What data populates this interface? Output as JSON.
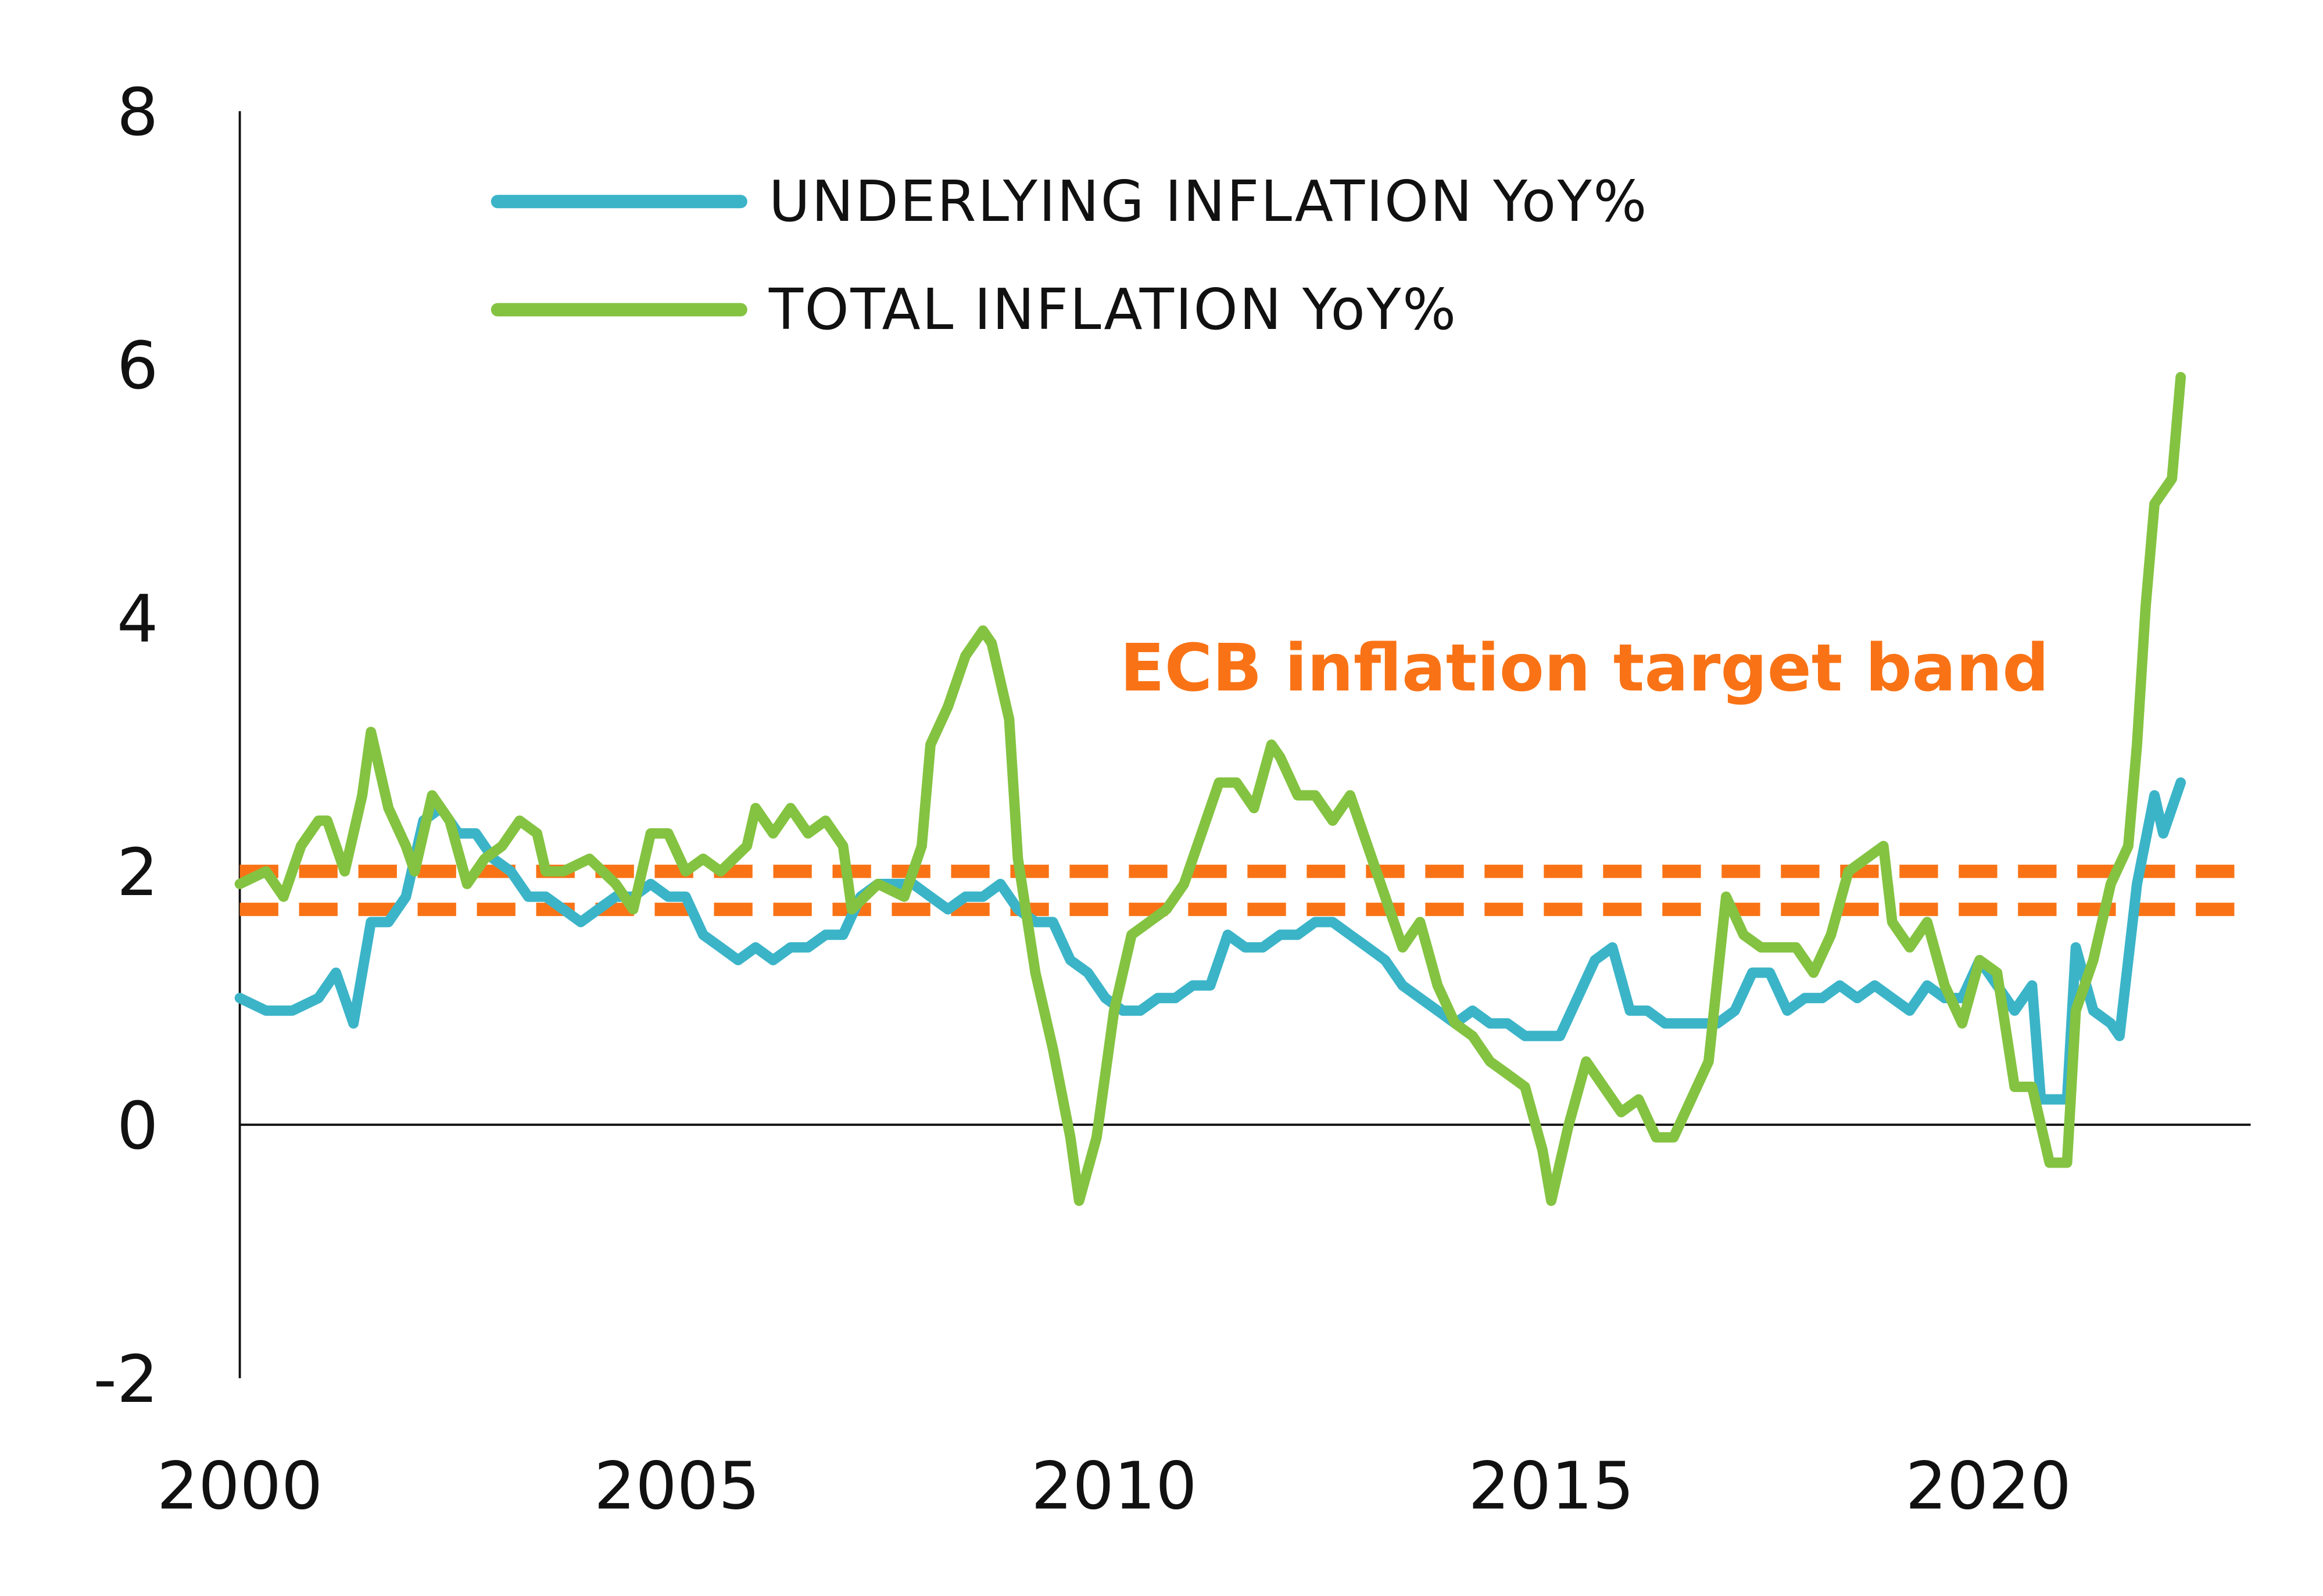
{
  "chart_data": {
    "type": "line",
    "title": "",
    "xlabel": "",
    "ylabel": "",
    "xlim": [
      2000,
      2023
    ],
    "ylim": [
      -2,
      8
    ],
    "x_ticks": [
      2000,
      2005,
      2010,
      2015,
      2020
    ],
    "x_tick_labels": [
      "2000",
      "2005",
      "2010",
      "2015",
      "2020"
    ],
    "y_ticks": [
      -2,
      0,
      2,
      4,
      6,
      8
    ],
    "y_tick_labels": [
      "-2",
      "0",
      "2",
      "4",
      "6",
      "8"
    ],
    "grid": false,
    "legend_position": "top-center",
    "annotation": "ECB inflation target band",
    "target_band": {
      "upper": 2.0,
      "lower": 1.7,
      "color": "#f97316"
    },
    "series": [
      {
        "name": "UNDERLYING INFLATION YoY%",
        "color": "#3bb4c8",
        "x": [
          2000.0,
          2000.3,
          2000.6,
          2000.9,
          2001.1,
          2001.3,
          2001.5,
          2001.7,
          2001.9,
          2002.1,
          2002.3,
          2002.5,
          2002.7,
          2002.9,
          2003.1,
          2003.3,
          2003.5,
          2003.7,
          2003.9,
          2004.1,
          2004.3,
          2004.5,
          2004.7,
          2004.9,
          2005.1,
          2005.3,
          2005.5,
          2005.7,
          2005.9,
          2006.1,
          2006.3,
          2006.5,
          2006.7,
          2006.9,
          2007.1,
          2007.3,
          2007.5,
          2007.7,
          2007.9,
          2008.1,
          2008.3,
          2008.5,
          2008.7,
          2008.9,
          2009.1,
          2009.3,
          2009.5,
          2009.7,
          2009.9,
          2010.1,
          2010.3,
          2010.5,
          2010.7,
          2010.9,
          2011.1,
          2011.3,
          2011.5,
          2011.7,
          2011.9,
          2012.1,
          2012.3,
          2012.5,
          2012.7,
          2012.9,
          2013.1,
          2013.3,
          2013.5,
          2013.7,
          2013.9,
          2014.1,
          2014.3,
          2014.5,
          2014.7,
          2014.9,
          2015.1,
          2015.3,
          2015.5,
          2015.7,
          2015.9,
          2016.1,
          2016.3,
          2016.5,
          2016.7,
          2016.9,
          2017.1,
          2017.3,
          2017.5,
          2017.7,
          2017.9,
          2018.1,
          2018.3,
          2018.5,
          2018.7,
          2018.9,
          2019.1,
          2019.3,
          2019.5,
          2019.7,
          2019.9,
          2020.1,
          2020.3,
          2020.5,
          2020.6,
          2020.9,
          2021.0,
          2021.2,
          2021.4,
          2021.5,
          2021.7,
          2021.9,
          2022.0,
          2022.2
        ],
        "values": [
          1.0,
          0.9,
          0.9,
          1.0,
          1.2,
          0.8,
          1.6,
          1.6,
          1.8,
          2.4,
          2.5,
          2.3,
          2.3,
          2.1,
          2.0,
          1.8,
          1.8,
          1.7,
          1.6,
          1.7,
          1.8,
          1.8,
          1.9,
          1.8,
          1.8,
          1.5,
          1.4,
          1.3,
          1.4,
          1.3,
          1.4,
          1.4,
          1.5,
          1.5,
          1.8,
          1.9,
          1.9,
          1.9,
          1.8,
          1.7,
          1.8,
          1.8,
          1.9,
          1.7,
          1.6,
          1.6,
          1.3,
          1.2,
          1.0,
          0.9,
          0.9,
          1.0,
          1.0,
          1.1,
          1.1,
          1.5,
          1.4,
          1.4,
          1.5,
          1.5,
          1.6,
          1.6,
          1.5,
          1.4,
          1.3,
          1.1,
          1.0,
          0.9,
          0.8,
          0.9,
          0.8,
          0.8,
          0.7,
          0.7,
          0.7,
          1.0,
          1.3,
          1.4,
          0.9,
          0.9,
          0.8,
          0.8,
          0.8,
          0.8,
          0.9,
          1.2,
          1.2,
          0.9,
          1.0,
          1.0,
          1.1,
          1.0,
          1.1,
          1.0,
          0.9,
          1.1,
          1.0,
          1.0,
          1.3,
          1.1,
          0.9,
          1.1,
          0.2,
          0.2,
          1.4,
          0.9,
          0.8,
          0.7,
          1.9,
          2.6,
          2.3,
          2.7
        ]
      },
      {
        "name": "TOTAL INFLATION YoY%",
        "color": "#84c341",
        "x": [
          2000.0,
          2000.3,
          2000.5,
          2000.7,
          2000.9,
          2001.0,
          2001.2,
          2001.4,
          2001.5,
          2001.7,
          2001.9,
          2002.0,
          2002.2,
          2002.4,
          2002.6,
          2002.8,
          2003.0,
          2003.2,
          2003.4,
          2003.5,
          2003.7,
          2004.0,
          2004.3,
          2004.5,
          2004.7,
          2004.9,
          2005.1,
          2005.3,
          2005.5,
          2005.8,
          2005.9,
          2006.1,
          2006.3,
          2006.5,
          2006.7,
          2006.9,
          2007.0,
          2007.3,
          2007.6,
          2007.8,
          2007.9,
          2008.1,
          2008.3,
          2008.5,
          2008.6,
          2008.8,
          2008.9,
          2009.1,
          2009.3,
          2009.5,
          2009.6,
          2009.8,
          2010.0,
          2010.2,
          2010.4,
          2010.6,
          2010.8,
          2011.0,
          2011.2,
          2011.4,
          2011.6,
          2011.8,
          2011.9,
          2012.1,
          2012.3,
          2012.5,
          2012.7,
          2012.9,
          2013.1,
          2013.3,
          2013.5,
          2013.7,
          2013.9,
          2014.1,
          2014.3,
          2014.5,
          2014.7,
          2014.9,
          2015.0,
          2015.2,
          2015.4,
          2015.6,
          2015.8,
          2016.0,
          2016.2,
          2016.4,
          2016.6,
          2016.8,
          2017.0,
          2017.2,
          2017.4,
          2017.6,
          2017.8,
          2018.0,
          2018.2,
          2018.4,
          2018.6,
          2018.8,
          2018.9,
          2019.1,
          2019.3,
          2019.5,
          2019.7,
          2019.9,
          2020.1,
          2020.3,
          2020.5,
          2020.7,
          2020.9,
          2021.0,
          2021.2,
          2021.4,
          2021.6,
          2021.7,
          2021.8,
          2021.9,
          2022.1,
          2022.2
        ],
        "values": [
          1.9,
          2.0,
          1.8,
          2.2,
          2.4,
          2.4,
          2.0,
          2.6,
          3.1,
          2.5,
          2.2,
          2.0,
          2.6,
          2.4,
          1.9,
          2.1,
          2.2,
          2.4,
          2.3,
          2.0,
          2.0,
          2.1,
          1.9,
          1.7,
          2.3,
          2.3,
          2.0,
          2.1,
          2.0,
          2.2,
          2.5,
          2.3,
          2.5,
          2.3,
          2.4,
          2.2,
          1.7,
          1.9,
          1.8,
          2.2,
          3.0,
          3.3,
          3.7,
          3.9,
          3.8,
          3.2,
          2.1,
          1.2,
          0.6,
          -0.1,
          -0.6,
          -0.1,
          0.9,
          1.5,
          1.6,
          1.7,
          1.9,
          2.3,
          2.7,
          2.7,
          2.5,
          3.0,
          2.9,
          2.6,
          2.6,
          2.4,
          2.6,
          2.2,
          1.8,
          1.4,
          1.6,
          1.1,
          0.8,
          0.7,
          0.5,
          0.4,
          0.3,
          -0.2,
          -0.6,
          0.0,
          0.5,
          0.3,
          0.1,
          0.2,
          -0.1,
          -0.1,
          0.2,
          0.5,
          1.8,
          1.5,
          1.4,
          1.4,
          1.4,
          1.2,
          1.5,
          2.0,
          2.1,
          2.2,
          1.6,
          1.4,
          1.6,
          1.1,
          0.8,
          1.3,
          1.2,
          0.3,
          0.3,
          -0.3,
          -0.3,
          0.9,
          1.3,
          1.9,
          2.2,
          3.0,
          4.1,
          4.9,
          5.1,
          5.9
        ]
      }
    ]
  }
}
